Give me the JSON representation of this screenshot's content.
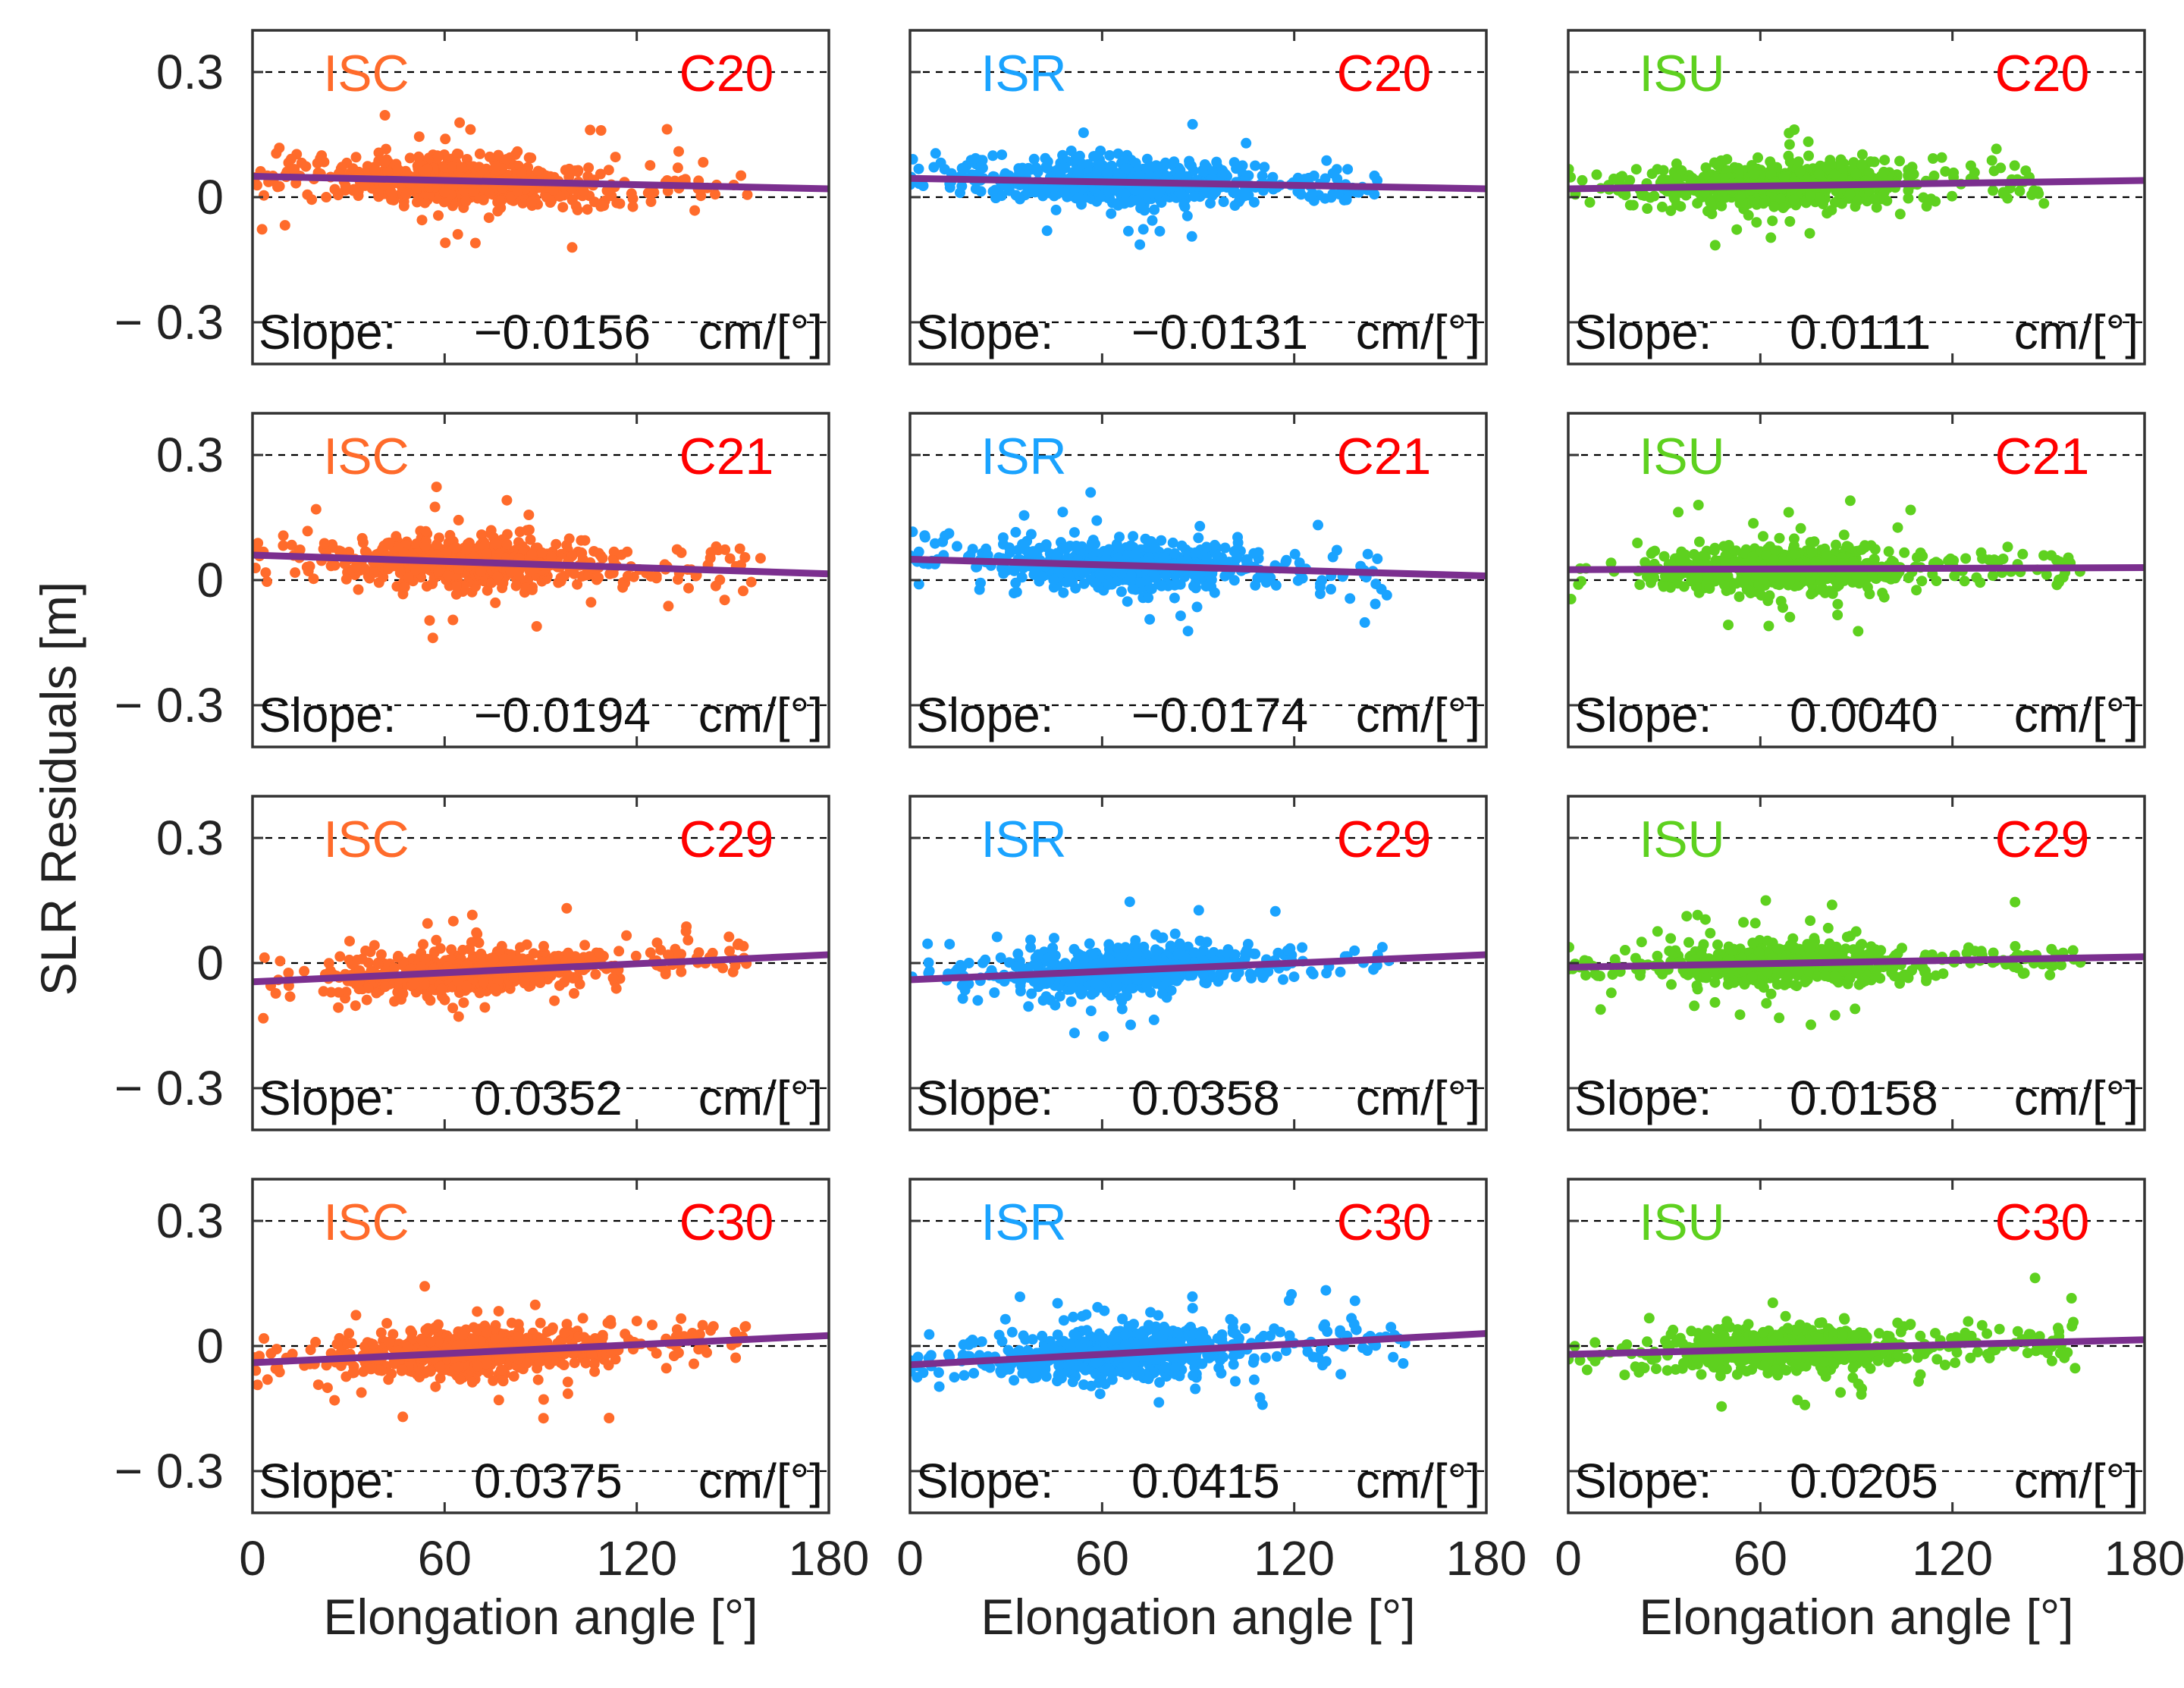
{
  "figure": {
    "ylabel": "SLR Residuals [m]",
    "xlabel": "Elongation angle [°]",
    "slope_prefix": "Slope:",
    "slope_unit": "cm/[°]",
    "colors": {
      "ISC": "#ff6b2b",
      "ISR": "#1aa3ff",
      "ISU": "#5ed11f",
      "satellite": "#ff0000",
      "fit": "#7b2f8f",
      "grid": "#000000",
      "frame": "#333333"
    }
  },
  "chart_data": [
    {
      "type": "scatter",
      "method": "ISC",
      "satellite": "C20",
      "slope_text": "−0.0156",
      "slope": -0.0156,
      "fit_start": 0.05,
      "fit_end": 0.02,
      "spread": 0.06,
      "x_extent": [
        0,
        155
      ],
      "xlabel": "",
      "ylabel": "SLR Residuals [m]",
      "xlim": [
        0,
        180
      ],
      "ylim": [
        -0.4,
        0.4
      ],
      "xticks": [
        0,
        60,
        120,
        180
      ],
      "yticks": [
        -0.3,
        0,
        0.3
      ],
      "ytick_labels": [
        "− 0.3",
        "0",
        "0.3"
      ],
      "grid_y": [
        -0.3,
        0,
        0.3
      ]
    },
    {
      "type": "scatter",
      "method": "ISR",
      "satellite": "C20",
      "slope_text": "−0.0131",
      "slope": -0.0131,
      "fit_start": 0.045,
      "fit_end": 0.02,
      "spread": 0.055,
      "x_extent": [
        0,
        150
      ],
      "xlabel": "",
      "ylabel": "",
      "xlim": [
        0,
        180
      ],
      "ylim": [
        -0.4,
        0.4
      ],
      "xticks": [
        0,
        60,
        120,
        180
      ],
      "yticks": [
        -0.3,
        0,
        0.3
      ],
      "ytick_labels": [
        "− 0.3",
        "0",
        "0.3"
      ],
      "grid_y": [
        -0.3,
        0,
        0.3
      ]
    },
    {
      "type": "scatter",
      "method": "ISU",
      "satellite": "C20",
      "slope_text": "0.0111",
      "slope": 0.0111,
      "fit_start": 0.02,
      "fit_end": 0.04,
      "spread": 0.055,
      "x_extent": [
        0,
        150
      ],
      "xlabel": "",
      "ylabel": "",
      "xlim": [
        0,
        180
      ],
      "ylim": [
        -0.4,
        0.4
      ],
      "xticks": [
        0,
        60,
        120,
        180
      ],
      "yticks": [
        -0.3,
        0,
        0.3
      ],
      "ytick_labels": [
        "− 0.3",
        "0",
        "0.3"
      ],
      "grid_y": [
        -0.3,
        0,
        0.3
      ]
    },
    {
      "type": "scatter",
      "method": "ISC",
      "satellite": "C21",
      "slope_text": "−0.0194",
      "slope": -0.0194,
      "fit_start": 0.06,
      "fit_end": 0.015,
      "spread": 0.06,
      "x_extent": [
        0,
        160
      ],
      "xlabel": "",
      "ylabel": "SLR Residuals [m]",
      "xlim": [
        0,
        180
      ],
      "ylim": [
        -0.4,
        0.4
      ],
      "xticks": [
        0,
        60,
        120,
        180
      ],
      "yticks": [
        -0.3,
        0,
        0.3
      ],
      "ytick_labels": [
        "− 0.3",
        "0",
        "0.3"
      ],
      "grid_y": [
        -0.3,
        0,
        0.3
      ]
    },
    {
      "type": "scatter",
      "method": "ISR",
      "satellite": "C21",
      "slope_text": "−0.0174",
      "slope": -0.0174,
      "fit_start": 0.05,
      "fit_end": 0.01,
      "spread": 0.06,
      "x_extent": [
        0,
        150
      ],
      "xlabel": "",
      "ylabel": "",
      "xlim": [
        0,
        180
      ],
      "ylim": [
        -0.4,
        0.4
      ],
      "xticks": [
        0,
        60,
        120,
        180
      ],
      "yticks": [
        -0.3,
        0,
        0.3
      ],
      "ytick_labels": [
        "− 0.3",
        "0",
        "0.3"
      ],
      "grid_y": [
        -0.3,
        0,
        0.3
      ]
    },
    {
      "type": "scatter",
      "method": "ISU",
      "satellite": "C21",
      "slope_text": "0.0040",
      "slope": 0.004,
      "fit_start": 0.025,
      "fit_end": 0.03,
      "spread": 0.055,
      "x_extent": [
        0,
        160
      ],
      "xlabel": "",
      "ylabel": "",
      "xlim": [
        0,
        180
      ],
      "ylim": [
        -0.4,
        0.4
      ],
      "xticks": [
        0,
        60,
        120,
        180
      ],
      "yticks": [
        -0.3,
        0,
        0.3
      ],
      "ytick_labels": [
        "− 0.3",
        "0",
        "0.3"
      ],
      "grid_y": [
        -0.3,
        0,
        0.3
      ]
    },
    {
      "type": "scatter",
      "method": "ISC",
      "satellite": "C29",
      "slope_text": "0.0352",
      "slope": 0.0352,
      "fit_start": -0.045,
      "fit_end": 0.02,
      "spread": 0.055,
      "x_extent": [
        0,
        155
      ],
      "xlabel": "",
      "ylabel": "SLR Residuals [m]",
      "xlim": [
        0,
        180
      ],
      "ylim": [
        -0.4,
        0.4
      ],
      "xticks": [
        0,
        60,
        120,
        180
      ],
      "yticks": [
        -0.3,
        0,
        0.3
      ],
      "ytick_labels": [
        "− 0.3",
        "0",
        "0.3"
      ],
      "grid_y": [
        -0.3,
        0,
        0.3
      ]
    },
    {
      "type": "scatter",
      "method": "ISR",
      "satellite": "C29",
      "slope_text": "0.0358",
      "slope": 0.0358,
      "fit_start": -0.04,
      "fit_end": 0.02,
      "spread": 0.055,
      "x_extent": [
        0,
        150
      ],
      "xlabel": "",
      "ylabel": "",
      "xlim": [
        0,
        180
      ],
      "ylim": [
        -0.4,
        0.4
      ],
      "xticks": [
        0,
        60,
        120,
        180
      ],
      "yticks": [
        -0.3,
        0,
        0.3
      ],
      "ytick_labels": [
        "− 0.3",
        "0",
        "0.3"
      ],
      "grid_y": [
        -0.3,
        0,
        0.3
      ]
    },
    {
      "type": "scatter",
      "method": "ISU",
      "satellite": "C29",
      "slope_text": "0.0158",
      "slope": 0.0158,
      "fit_start": -0.01,
      "fit_end": 0.015,
      "spread": 0.05,
      "x_extent": [
        0,
        160
      ],
      "xlabel": "",
      "ylabel": "",
      "xlim": [
        0,
        180
      ],
      "ylim": [
        -0.4,
        0.4
      ],
      "xticks": [
        0,
        60,
        120,
        180
      ],
      "yticks": [
        -0.3,
        0,
        0.3
      ],
      "ytick_labels": [
        "− 0.3",
        "0",
        "0.3"
      ],
      "grid_y": [
        -0.3,
        0,
        0.3
      ]
    },
    {
      "type": "scatter",
      "method": "ISC",
      "satellite": "C30",
      "slope_text": "0.0375",
      "slope": 0.0375,
      "fit_start": -0.04,
      "fit_end": 0.025,
      "spread": 0.06,
      "x_extent": [
        0,
        155
      ],
      "xlabel": "Elongation angle [°]",
      "ylabel": "SLR Residuals [m]",
      "xlim": [
        0,
        180
      ],
      "ylim": [
        -0.4,
        0.4
      ],
      "xticks": [
        0,
        60,
        120,
        180
      ],
      "yticks": [
        -0.3,
        0,
        0.3
      ],
      "ytick_labels": [
        "− 0.3",
        "0",
        "0.3"
      ],
      "grid_y": [
        -0.3,
        0,
        0.3
      ]
    },
    {
      "type": "scatter",
      "method": "ISR",
      "satellite": "C30",
      "slope_text": "0.0415",
      "slope": 0.0415,
      "fit_start": -0.045,
      "fit_end": 0.03,
      "spread": 0.06,
      "x_extent": [
        0,
        155
      ],
      "xlabel": "Elongation angle [°]",
      "ylabel": "",
      "xlim": [
        0,
        180
      ],
      "ylim": [
        -0.4,
        0.4
      ],
      "xticks": [
        0,
        60,
        120,
        180
      ],
      "yticks": [
        -0.3,
        0,
        0.3
      ],
      "ytick_labels": [
        "− 0.3",
        "0",
        "0.3"
      ],
      "grid_y": [
        -0.3,
        0,
        0.3
      ]
    },
    {
      "type": "scatter",
      "method": "ISU",
      "satellite": "C30",
      "slope_text": "0.0205",
      "slope": 0.0205,
      "fit_start": -0.02,
      "fit_end": 0.015,
      "spread": 0.055,
      "x_extent": [
        0,
        160
      ],
      "xlabel": "Elongation angle [°]",
      "ylabel": "",
      "xlim": [
        0,
        180
      ],
      "ylim": [
        -0.4,
        0.4
      ],
      "xticks": [
        0,
        60,
        120,
        180
      ],
      "yticks": [
        -0.3,
        0,
        0.3
      ],
      "ytick_labels": [
        "− 0.3",
        "0",
        "0.3"
      ],
      "grid_y": [
        -0.3,
        0,
        0.3
      ]
    }
  ]
}
